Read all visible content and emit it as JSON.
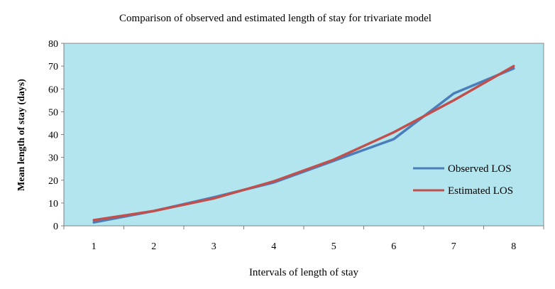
{
  "chart_data": {
    "type": "line",
    "title": "Comparison of observed and estimated length of stay for trivariate model",
    "xlabel": "Intervals of length of stay",
    "ylabel": "Mean length of stay (days)",
    "categories": [
      "1",
      "2",
      "3",
      "4",
      "5",
      "6",
      "7",
      "8"
    ],
    "ylim": [
      0,
      80
    ],
    "yticks": [
      "0",
      "10",
      "20",
      "30",
      "40",
      "50",
      "60",
      "70",
      "80"
    ],
    "grid": false,
    "legend_position": "right",
    "plot_background": "#b3e5ef",
    "series": [
      {
        "name": "Observed LOS",
        "color": "#4a7ebb",
        "values": [
          1.5,
          6.5,
          12.5,
          19,
          28.5,
          38,
          58,
          69
        ]
      },
      {
        "name": "Estimated LOS",
        "color": "#c0504d",
        "values": [
          2.5,
          6.5,
          12,
          19.5,
          29,
          41,
          55,
          70
        ]
      }
    ]
  }
}
